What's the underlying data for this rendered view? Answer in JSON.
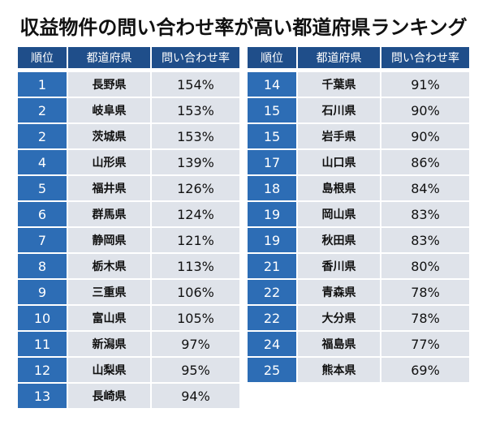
{
  "title": "収益物件の問い合わせ率が高い都道府県ランキング",
  "headers": {
    "rank": "順位",
    "prefecture": "都道府県",
    "rate": "問い合わせ率"
  },
  "colors": {
    "header_bg": "#1f4e8a",
    "rank_bg": "#2d6db5",
    "cell_bg": "#dfe3ea"
  },
  "left": [
    {
      "rank": "1",
      "prefecture": "長野県",
      "rate": "154%"
    },
    {
      "rank": "2",
      "prefecture": "岐阜県",
      "rate": "153%"
    },
    {
      "rank": "2",
      "prefecture": "茨城県",
      "rate": "153%"
    },
    {
      "rank": "4",
      "prefecture": "山形県",
      "rate": "139%"
    },
    {
      "rank": "5",
      "prefecture": "福井県",
      "rate": "126%"
    },
    {
      "rank": "6",
      "prefecture": "群馬県",
      "rate": "124%"
    },
    {
      "rank": "7",
      "prefecture": "静岡県",
      "rate": "121%"
    },
    {
      "rank": "8",
      "prefecture": "栃木県",
      "rate": "113%"
    },
    {
      "rank": "9",
      "prefecture": "三重県",
      "rate": "106%"
    },
    {
      "rank": "10",
      "prefecture": "富山県",
      "rate": "105%"
    },
    {
      "rank": "11",
      "prefecture": "新潟県",
      "rate": "97%"
    },
    {
      "rank": "12",
      "prefecture": "山梨県",
      "rate": "95%"
    },
    {
      "rank": "13",
      "prefecture": "長崎県",
      "rate": "94%"
    }
  ],
  "right": [
    {
      "rank": "14",
      "prefecture": "千葉県",
      "rate": "91%"
    },
    {
      "rank": "15",
      "prefecture": "石川県",
      "rate": "90%"
    },
    {
      "rank": "15",
      "prefecture": "岩手県",
      "rate": "90%"
    },
    {
      "rank": "17",
      "prefecture": "山口県",
      "rate": "86%"
    },
    {
      "rank": "18",
      "prefecture": "島根県",
      "rate": "84%"
    },
    {
      "rank": "19",
      "prefecture": "岡山県",
      "rate": "83%"
    },
    {
      "rank": "19",
      "prefecture": "秋田県",
      "rate": "83%"
    },
    {
      "rank": "21",
      "prefecture": "香川県",
      "rate": "80%"
    },
    {
      "rank": "22",
      "prefecture": "青森県",
      "rate": "78%"
    },
    {
      "rank": "22",
      "prefecture": "大分県",
      "rate": "78%"
    },
    {
      "rank": "24",
      "prefecture": "福島県",
      "rate": "77%"
    },
    {
      "rank": "25",
      "prefecture": "熊本県",
      "rate": "69%"
    }
  ]
}
